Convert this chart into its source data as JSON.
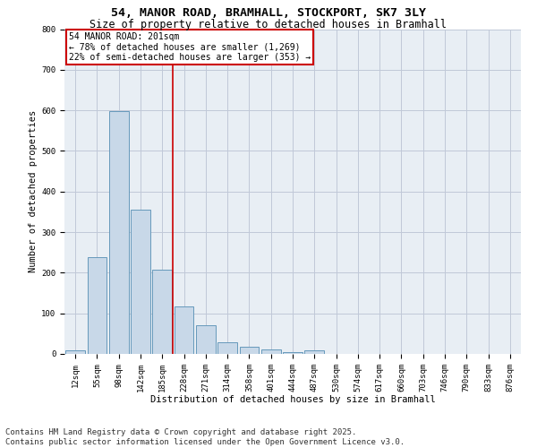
{
  "title_line1": "54, MANOR ROAD, BRAMHALL, STOCKPORT, SK7 3LY",
  "title_line2": "Size of property relative to detached houses in Bramhall",
  "xlabel": "Distribution of detached houses by size in Bramhall",
  "ylabel": "Number of detached properties",
  "bin_labels": [
    "12sqm",
    "55sqm",
    "98sqm",
    "142sqm",
    "185sqm",
    "228sqm",
    "271sqm",
    "314sqm",
    "358sqm",
    "401sqm",
    "444sqm",
    "487sqm",
    "530sqm",
    "574sqm",
    "617sqm",
    "660sqm",
    "703sqm",
    "746sqm",
    "790sqm",
    "833sqm",
    "876sqm"
  ],
  "bar_heights": [
    8,
    238,
    598,
    355,
    207,
    118,
    70,
    28,
    18,
    12,
    4,
    8,
    0,
    0,
    0,
    0,
    0,
    0,
    0,
    0,
    0
  ],
  "bar_color": "#c8d8e8",
  "bar_edge_color": "#6699bb",
  "subject_line_color": "#cc0000",
  "annotation_text_line1": "54 MANOR ROAD: 201sqm",
  "annotation_text_line2": "← 78% of detached houses are smaller (1,269)",
  "annotation_text_line3": "22% of semi-detached houses are larger (353) →",
  "annotation_box_color": "#cc0000",
  "annotation_text_color": "#000000",
  "ylim": [
    0,
    800
  ],
  "yticks": [
    0,
    100,
    200,
    300,
    400,
    500,
    600,
    700,
    800
  ],
  "grid_color": "#c0c8d8",
  "background_color": "#e8eef4",
  "footer_line1": "Contains HM Land Registry data © Crown copyright and database right 2025.",
  "footer_line2": "Contains public sector information licensed under the Open Government Licence v3.0.",
  "footer_fontsize": 6.5,
  "title_fontsize": 9.5,
  "subtitle_fontsize": 8.5,
  "axis_label_fontsize": 7.5,
  "tick_fontsize": 6.5,
  "annotation_fontsize": 7.0
}
